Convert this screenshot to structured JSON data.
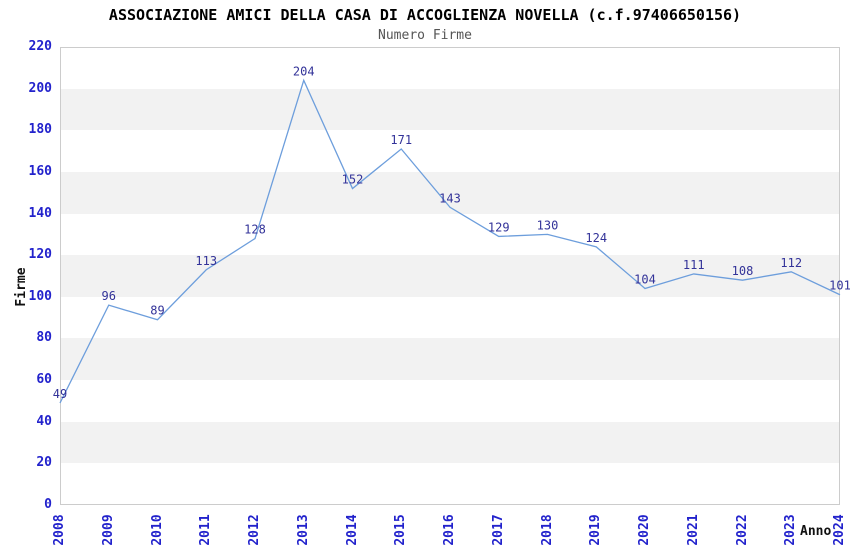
{
  "header": {
    "title": "ASSOCIAZIONE AMICI DELLA CASA DI ACCOGLIENZA NOVELLA (c.f.97406650156)",
    "subtitle": "Numero Firme"
  },
  "chart_data": {
    "type": "line",
    "title": "ASSOCIAZIONE AMICI DELLA CASA DI ACCOGLIENZA NOVELLA (c.f.97406650156)",
    "subtitle": "Numero Firme",
    "xlabel": "Anno",
    "ylabel": "Firme",
    "categories": [
      "2008",
      "2009",
      "2010",
      "2011",
      "2012",
      "2013",
      "2014",
      "2015",
      "2016",
      "2017",
      "2018",
      "2019",
      "2020",
      "2021",
      "2022",
      "2023",
      "2024"
    ],
    "values": [
      49,
      96,
      89,
      113,
      128,
      204,
      152,
      171,
      143,
      129,
      130,
      124,
      104,
      111,
      108,
      112,
      101
    ],
    "ylim": [
      0,
      220
    ],
    "ytick_step": 20,
    "grid": "alternating-horizontal-bands",
    "legend_position": "none",
    "point_labels_visible": true
  },
  "colors": {
    "line": "#6D9EDC",
    "point_label": "#333399",
    "tick_label": "#2222CC",
    "band": "#F2F2F2",
    "plot_border": "#CCCCCC",
    "title": "#000000",
    "subtitle": "#555555",
    "axis_title": "#111111",
    "background": "#FFFFFF"
  }
}
